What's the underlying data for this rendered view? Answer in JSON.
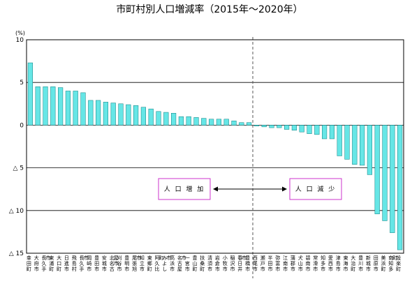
{
  "chart_data": {
    "type": "bar",
    "title": "市町村別人口増減率（2015年～2020年）",
    "unit_label": "(%)",
    "ylim": [
      -15,
      10
    ],
    "y_ticks": [
      {
        "value": 10,
        "label": "10"
      },
      {
        "value": 5,
        "label": "5"
      },
      {
        "value": 0,
        "label": "0"
      },
      {
        "value": -5,
        "label": "△ 5"
      },
      {
        "value": -10,
        "label": "△ 10"
      },
      {
        "value": -15,
        "label": "△ 15"
      }
    ],
    "grid": true,
    "categories": [
      "幸田町",
      "大府市",
      "長久手市",
      "東浦町",
      "大口町",
      "日進市",
      "飛島村",
      "長久手市",
      "岡崎市",
      "豊田市",
      "安城市",
      "北名古屋市",
      "刈谷市",
      "豊明市",
      "尾張旭市",
      "知立市",
      "東郷町",
      "阿久比町",
      "みよし市",
      "高浜市",
      "名古屋市",
      "一宮市",
      "豊山町",
      "扶桑町",
      "清須市",
      "岩倉市",
      "小牧市",
      "稲沢市",
      "春日井市",
      "豊橋市",
      "西尾市",
      "瀬戸市",
      "半田市",
      "弥富市",
      "江南市",
      "蒲郡市",
      "犬山市",
      "碧南市",
      "常滑市",
      "知多市",
      "愛西市",
      "津島市",
      "東海市",
      "大治町",
      "豊川市",
      "新城市",
      "田原市",
      "美浜町",
      "南知多町",
      "設楽町"
    ],
    "values": [
      7.3,
      4.5,
      4.5,
      4.5,
      4.4,
      4.0,
      4.0,
      3.8,
      2.9,
      2.9,
      2.7,
      2.6,
      2.5,
      2.4,
      2.3,
      2.1,
      1.9,
      1.6,
      1.5,
      1.4,
      1.0,
      1.0,
      0.9,
      0.8,
      0.7,
      0.7,
      0.7,
      0.5,
      0.3,
      0.3,
      -0.1,
      -0.2,
      -0.3,
      -0.3,
      -0.5,
      -0.6,
      -0.8,
      -1.0,
      -1.1,
      -1.6,
      -1.6,
      -3.6,
      -4.0,
      -4.6,
      -4.7,
      -5.8,
      -10.4,
      -11.2,
      -12.6,
      -14.6
    ],
    "bar_color": "#66e6e6",
    "bar_edge_color": "#0a7f7f",
    "divider_after_index": 29,
    "annotations": {
      "increase_label": "人 口 増 加",
      "decrease_label": "人 口 減 少",
      "box_border_color": "#cc33cc"
    }
  }
}
